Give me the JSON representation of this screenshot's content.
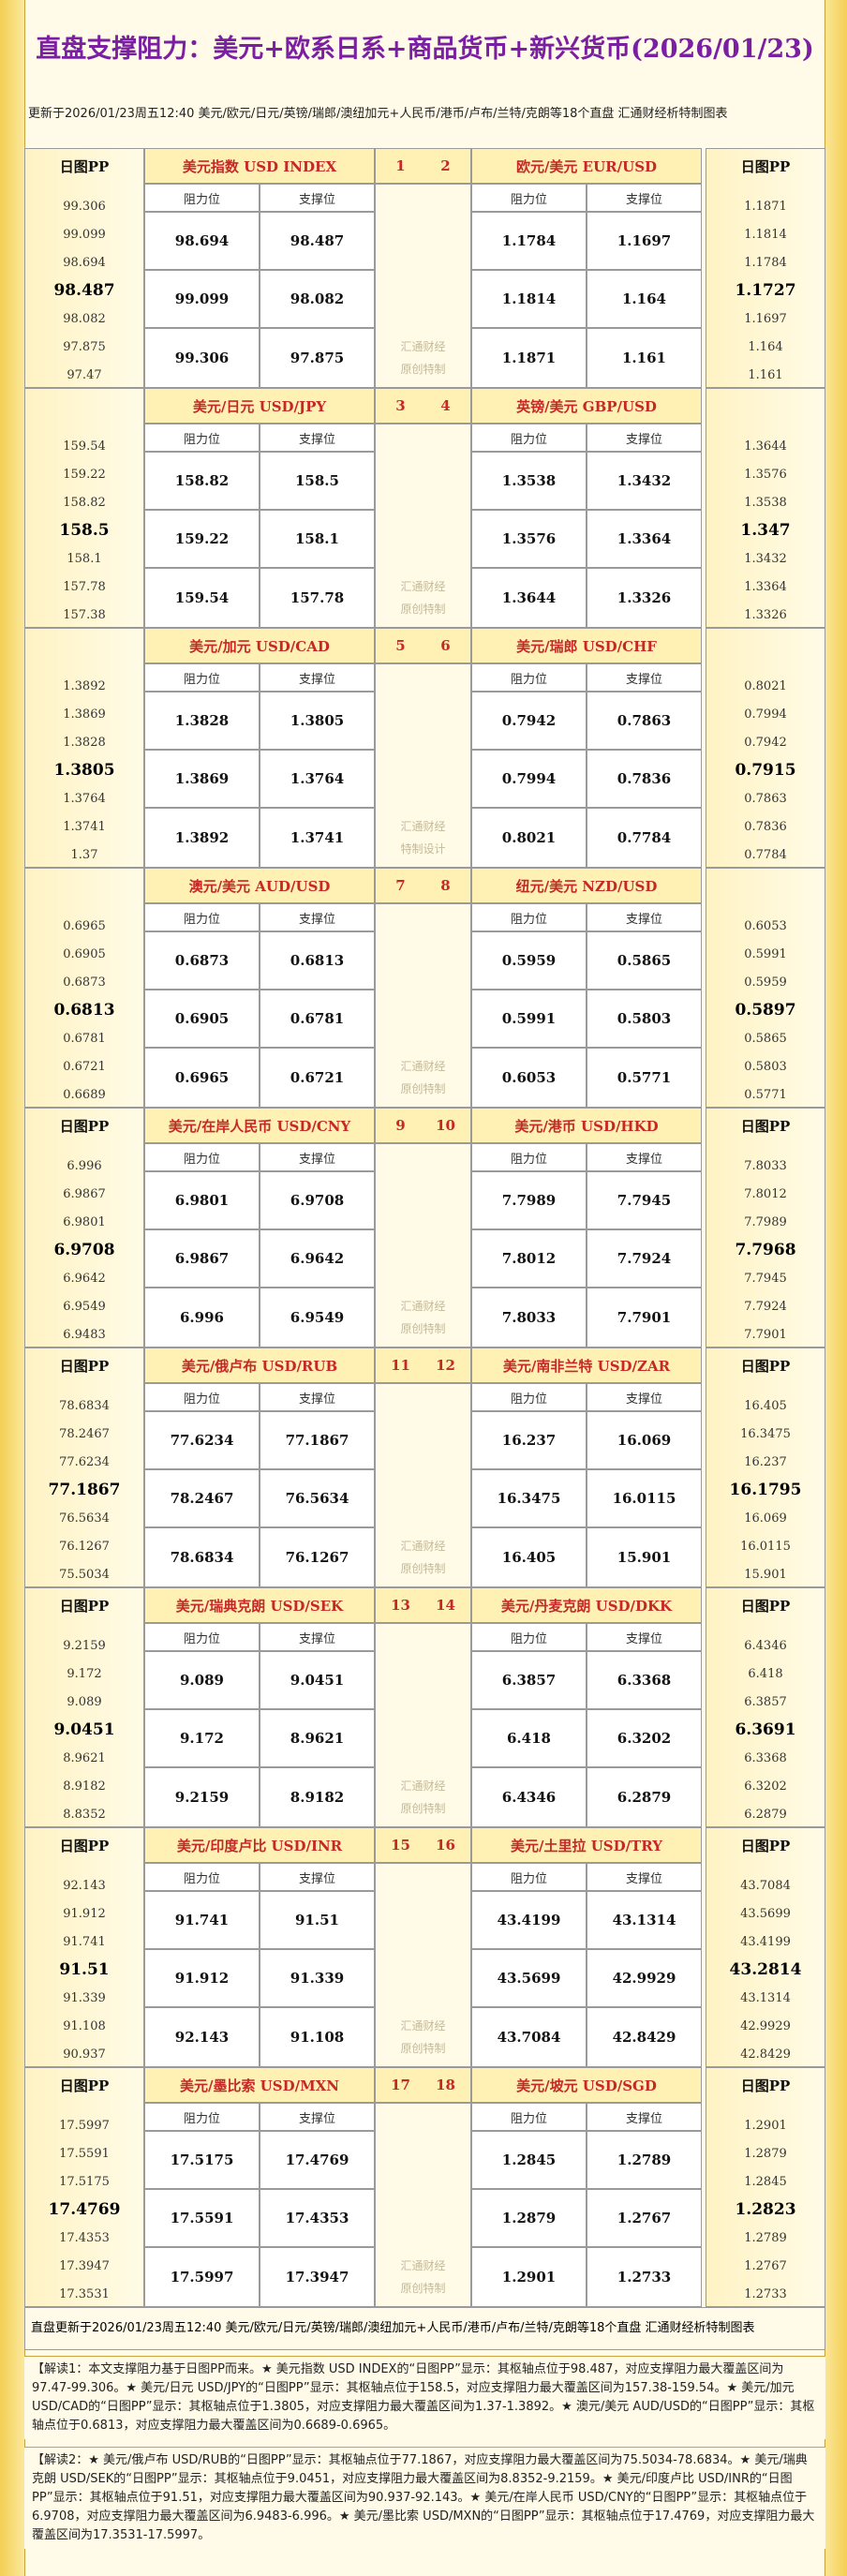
{
  "header": {
    "title": "直盘支撑阻力：美元+欧系日系+商品货币+新兴货币(2026/01/23)",
    "subtitle": "更新于2026/01/23周五12:40 美元/欧元/日元/英镑/瑞郎/澳纽加元+人民币/港币/卢布/兰特/克朗等18个直盘 汇通财经析特制图表"
  },
  "labels": {
    "resistance": "阻力位",
    "support": "支撑位"
  },
  "blocks": [
    {
      "left": {
        "name": "美元指数 USD INDEX",
        "number": 1,
        "pp_label": "日图PP",
        "pp": [
          99.306,
          99.099,
          98.694,
          98.487,
          98.082,
          97.875,
          97.47
        ],
        "table": [
          [
            98.694,
            98.487
          ],
          [
            99.099,
            98.082
          ],
          [
            99.306,
            97.875
          ]
        ]
      },
      "right": {
        "name": "欧元/美元 EUR/USD",
        "number": 2,
        "pp_label": "日图PP",
        "pp": [
          1.1871,
          1.1814,
          1.1784,
          1.1727,
          1.1697,
          1.164,
          1.161
        ],
        "table": [
          [
            1.1784,
            1.1697
          ],
          [
            1.1814,
            1.164
          ],
          [
            1.1871,
            1.161
          ]
        ]
      },
      "watermark": [
        "汇通财经",
        "原创特制"
      ]
    },
    {
      "left": {
        "name": "美元/日元 USD/JPY",
        "number": 3,
        "pp": [
          159.54,
          159.22,
          158.82,
          158.5,
          158.1,
          157.78,
          157.38
        ],
        "table": [
          [
            158.82,
            158.5
          ],
          [
            159.22,
            158.1
          ],
          [
            159.54,
            157.78
          ]
        ]
      },
      "right": {
        "name": "英镑/美元 GBP/USD",
        "number": 4,
        "pp": [
          1.3644,
          1.3576,
          1.3538,
          1.347,
          1.3432,
          1.3364,
          1.3326
        ],
        "table": [
          [
            1.3538,
            1.3432
          ],
          [
            1.3576,
            1.3364
          ],
          [
            1.3644,
            1.3326
          ]
        ]
      },
      "watermark": [
        "汇通财经",
        "原创特制"
      ]
    },
    {
      "left": {
        "name": "美元/加元 USD/CAD",
        "number": 5,
        "pp": [
          1.3892,
          1.3869,
          1.3828,
          1.3805,
          1.3764,
          1.3741,
          1.37
        ],
        "table": [
          [
            1.3828,
            1.3805
          ],
          [
            1.3869,
            1.3764
          ],
          [
            1.3892,
            1.3741
          ]
        ]
      },
      "right": {
        "name": "美元/瑞郎 USD/CHF",
        "number": 6,
        "pp": [
          0.8021,
          0.7994,
          0.7942,
          0.7915,
          0.7863,
          0.7836,
          0.7784
        ],
        "table": [
          [
            0.7942,
            0.7863
          ],
          [
            0.7994,
            0.7836
          ],
          [
            0.8021,
            0.7784
          ]
        ]
      },
      "watermark": [
        "汇通财经",
        "特制设计"
      ]
    },
    {
      "left": {
        "name": "澳元/美元 AUD/USD",
        "number": 7,
        "pp": [
          0.6965,
          0.6905,
          0.6873,
          0.6813,
          0.6781,
          0.6721,
          0.6689
        ],
        "table": [
          [
            0.6873,
            0.6813
          ],
          [
            0.6905,
            0.6781
          ],
          [
            0.6965,
            0.6721
          ]
        ]
      },
      "right": {
        "name": "纽元/美元 NZD/USD",
        "number": 8,
        "pp": [
          0.6053,
          0.5991,
          0.5959,
          0.5897,
          0.5865,
          0.5803,
          0.5771
        ],
        "table": [
          [
            0.5959,
            0.5865
          ],
          [
            0.5991,
            0.5803
          ],
          [
            0.6053,
            0.5771
          ]
        ]
      },
      "watermark": [
        "汇通财经",
        "原创特制"
      ]
    },
    {
      "left": {
        "name": "美元/在岸人民币 USD/CNY",
        "number": 9,
        "pp_label": "日图PP",
        "pp": [
          6.996,
          6.9867,
          6.9801,
          6.9708,
          6.9642,
          6.9549,
          6.9483
        ],
        "table": [
          [
            6.9801,
            6.9708
          ],
          [
            6.9867,
            6.9642
          ],
          [
            6.996,
            6.9549
          ]
        ]
      },
      "right": {
        "name": "美元/港币 USD/HKD",
        "number": 10,
        "pp_label": "日图PP",
        "pp": [
          7.8033,
          7.8012,
          7.7989,
          7.7968,
          7.7945,
          7.7924,
          7.7901
        ],
        "table": [
          [
            7.7989,
            7.7945
          ],
          [
            7.8012,
            7.7924
          ],
          [
            7.8033,
            7.7901
          ]
        ]
      },
      "watermark": [
        "汇通财经",
        "原创特制"
      ]
    },
    {
      "left": {
        "name": "美元/俄卢布 USD/RUB",
        "number": 11,
        "pp_label": "日图PP",
        "pp": [
          78.6834,
          78.2467,
          77.6234,
          77.1867,
          76.5634,
          76.1267,
          75.5034
        ],
        "table": [
          [
            77.6234,
            77.1867
          ],
          [
            78.2467,
            76.5634
          ],
          [
            78.6834,
            76.1267
          ]
        ]
      },
      "right": {
        "name": "美元/南非兰特 USD/ZAR",
        "number": 12,
        "pp_label": "日图PP",
        "pp": [
          16.405,
          16.3475,
          16.237,
          16.1795,
          16.069,
          16.0115,
          15.901
        ],
        "table": [
          [
            16.237,
            16.069
          ],
          [
            16.3475,
            16.0115
          ],
          [
            16.405,
            15.901
          ]
        ]
      },
      "watermark": [
        "汇通财经",
        "原创特制"
      ]
    },
    {
      "left": {
        "name": "美元/瑞典克朗 USD/SEK",
        "number": 13,
        "pp_label": "日图PP",
        "pp": [
          9.2159,
          9.172,
          9.089,
          9.0451,
          8.9621,
          8.9182,
          8.8352
        ],
        "table": [
          [
            9.089,
            9.0451
          ],
          [
            9.172,
            8.9621
          ],
          [
            9.2159,
            8.9182
          ]
        ]
      },
      "right": {
        "name": "美元/丹麦克朗 USD/DKK",
        "number": 14,
        "pp_label": "日图PP",
        "pp": [
          6.4346,
          6.418,
          6.3857,
          6.3691,
          6.3368,
          6.3202,
          6.2879
        ],
        "table": [
          [
            6.3857,
            6.3368
          ],
          [
            6.418,
            6.3202
          ],
          [
            6.4346,
            6.2879
          ]
        ]
      },
      "watermark": [
        "汇通财经",
        "原创特制"
      ]
    },
    {
      "left": {
        "name": "美元/印度卢比 USD/INR",
        "number": 15,
        "pp_label": "日图PP",
        "pp": [
          92.143,
          91.912,
          91.741,
          91.51,
          91.339,
          91.108,
          90.937
        ],
        "table": [
          [
            91.741,
            91.51
          ],
          [
            91.912,
            91.339
          ],
          [
            92.143,
            91.108
          ]
        ]
      },
      "right": {
        "name": "美元/土里拉 USD/TRY",
        "number": 16,
        "pp_label": "日图PP",
        "pp": [
          43.7084,
          43.5699,
          43.4199,
          43.2814,
          43.1314,
          42.9929,
          42.8429
        ],
        "table": [
          [
            43.4199,
            43.1314
          ],
          [
            43.5699,
            42.9929
          ],
          [
            43.7084,
            42.8429
          ]
        ]
      },
      "watermark": [
        "汇通财经",
        "原创特制"
      ]
    },
    {
      "left": {
        "name": "美元/墨比索 USD/MXN",
        "number": 17,
        "pp_label": "日图PP",
        "pp": [
          17.5997,
          17.5591,
          17.5175,
          17.4769,
          17.4353,
          17.3947,
          17.3531
        ],
        "table": [
          [
            17.5175,
            17.4769
          ],
          [
            17.5591,
            17.4353
          ],
          [
            17.5997,
            17.3947
          ]
        ]
      },
      "right": {
        "name": "美元/坡元 USD/SGD",
        "number": 18,
        "pp_label": "日图PP",
        "pp": [
          1.2901,
          1.2879,
          1.2845,
          1.2823,
          1.2789,
          1.2767,
          1.2733
        ],
        "table": [
          [
            1.2845,
            1.2789
          ],
          [
            1.2879,
            1.2767
          ],
          [
            1.2901,
            1.2733
          ]
        ]
      },
      "watermark": [
        "汇通财经",
        "原创特制"
      ]
    }
  ],
  "footer": "直盘更新于2026/01/23周五12:40 美元/欧元/日元/英镑/瑞郎/澳纽加元+人民币/港币/卢布/兰特/克朗等18个直盘 汇通财经析特制图表",
  "notes": [
    "【解读1：本文支撑阻力基于日图PP而来。★ 美元指数 USD INDEX的“日图PP”显示：其枢轴点位于98.487，对应支撑阻力最大覆盖区间为97.47-99.306。★ 美元/日元 USD/JPY的“日图PP”显示：其枢轴点位于158.5，对应支撑阻力最大覆盖区间为157.38-159.54。★ 美元/加元 USD/CAD的“日图PP”显示：其枢轴点位于1.3805，对应支撑阻力最大覆盖区间为1.37-1.3892。★ 澳元/美元 AUD/USD的“日图PP”显示：其枢轴点位于0.6813，对应支撑阻力最大覆盖区间为0.6689-0.6965。",
    "【解读2：★ 美元/俄卢布 USD/RUB的“日图PP”显示：其枢轴点位于77.1867，对应支撑阻力最大覆盖区间为75.5034-78.6834。★ 美元/瑞典克朗 USD/SEK的“日图PP”显示：其枢轴点位于9.0451，对应支撑阻力最大覆盖区间为8.8352-9.2159。★ 美元/印度卢比 USD/INR的“日图PP”显示：其枢轴点位于91.51，对应支撑阻力最大覆盖区间为90.937-92.143。★ 美元/在岸人民币 USD/CNY的“日图PP”显示：其枢轴点位于6.9708，对应支撑阻力最大覆盖区间为6.9483-6.996。★ 美元/墨比索 USD/MXN的“日图PP”显示：其枢轴点位于17.4769，对应支撑阻力最大覆盖区间为17.3531-17.5997。"
  ]
}
